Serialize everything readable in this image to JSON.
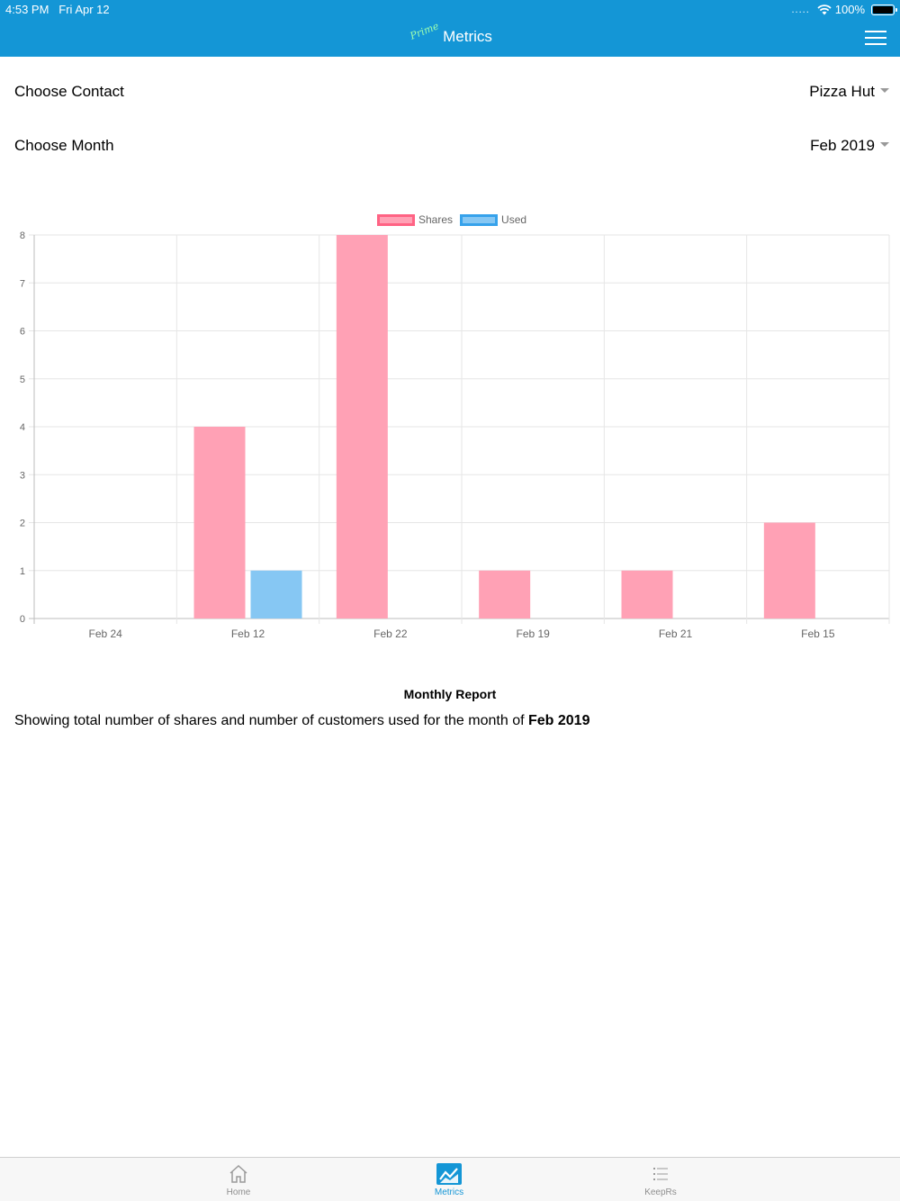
{
  "status_bar": {
    "time": "4:53 PM",
    "date": "Fri Apr 12",
    "battery": "100%",
    "signal": "....."
  },
  "header": {
    "prime_label": "Prime",
    "title": "Metrics"
  },
  "filters": {
    "contact_label": "Choose Contact",
    "contact_value": "Pizza Hut",
    "month_label": "Choose Month",
    "month_value": "Feb 2019"
  },
  "colors": {
    "header_bg": "#1496d6",
    "shares": "#ff6384",
    "shares_fill": "#ffa1b5",
    "used": "#36a2eb",
    "used_fill": "#86c7f3",
    "accent": "#1496d6"
  },
  "chart_data": {
    "type": "bar",
    "categories": [
      "Feb 24",
      "Feb 12",
      "Feb 22",
      "Feb 19",
      "Feb 21",
      "Feb 15"
    ],
    "series": [
      {
        "name": "Shares",
        "values": [
          0,
          4,
          8,
          1,
          1,
          2
        ]
      },
      {
        "name": "Used",
        "values": [
          0,
          1,
          0,
          0,
          0,
          0
        ]
      }
    ],
    "ylim": [
      0,
      8
    ],
    "yticks": [
      "0",
      "1",
      "2",
      "3",
      "4",
      "5",
      "6",
      "7",
      "8"
    ],
    "grid": true,
    "legend": "top-center"
  },
  "report": {
    "title": "Monthly Report",
    "text": "Showing total number of shares and number of customers used for the month of ",
    "month": "Feb 2019"
  },
  "tabs": [
    {
      "label": "Home",
      "icon": "home-icon"
    },
    {
      "label": "Metrics",
      "icon": "chart-icon",
      "active": true
    },
    {
      "label": "KeepRs",
      "icon": "list-icon"
    }
  ]
}
